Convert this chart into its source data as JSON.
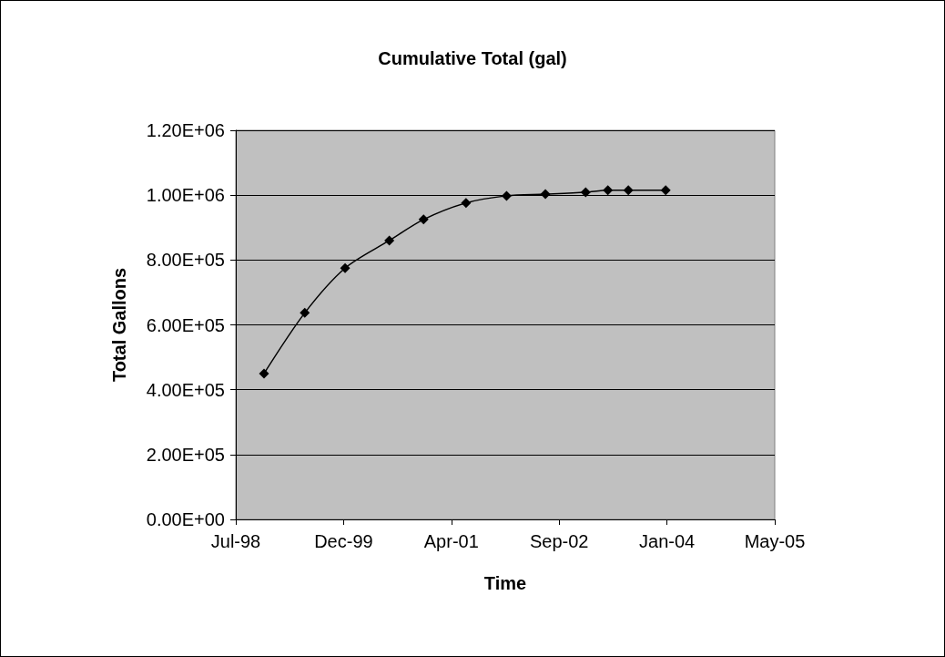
{
  "chart_data": {
    "type": "line",
    "title": "Cumulative Total (gal)",
    "xlabel": "Time",
    "ylabel": "Total Gallons",
    "x": [
      "1998-12-02",
      "1999-06-09",
      "1999-12-13",
      "2000-07-05",
      "2000-12-11",
      "2001-06-26",
      "2001-12-31",
      "2002-06-29",
      "2003-01-02",
      "2003-04-15",
      "2003-07-19",
      "2004-01-08"
    ],
    "series": [
      {
        "color": "#000000",
        "values": [
          450000,
          637000,
          775000,
          860000,
          925000,
          976000,
          998000,
          1003000,
          1009000,
          1015000,
          1015000,
          1015000
        ]
      }
    ],
    "xlim": [
      "1998-07-24",
      "2005-05-28"
    ],
    "xticks": [
      {
        "value": "1998-07-24",
        "label": "Jul-98"
      },
      {
        "value": "1999-12-06",
        "label": "Dec-99"
      },
      {
        "value": "2001-04-19",
        "label": "Apr-01"
      },
      {
        "value": "2002-09-01",
        "label": "Sep-02"
      },
      {
        "value": "2004-01-14",
        "label": "Jan-04"
      },
      {
        "value": "2005-05-28",
        "label": "May-05"
      }
    ],
    "ylim": [
      0,
      1200000
    ],
    "yticks": [
      {
        "value": 0,
        "label": "0.00E+00"
      },
      {
        "value": 200000,
        "label": "2.00E+05"
      },
      {
        "value": 400000,
        "label": "4.00E+05"
      },
      {
        "value": 600000,
        "label": "6.00E+05"
      },
      {
        "value": 800000,
        "label": "8.00E+05"
      },
      {
        "value": 1000000,
        "label": "1.00E+06"
      },
      {
        "value": 1200000,
        "label": "1.20E+06"
      }
    ],
    "grid": "y",
    "marker": "diamond",
    "line_style": "solid"
  }
}
